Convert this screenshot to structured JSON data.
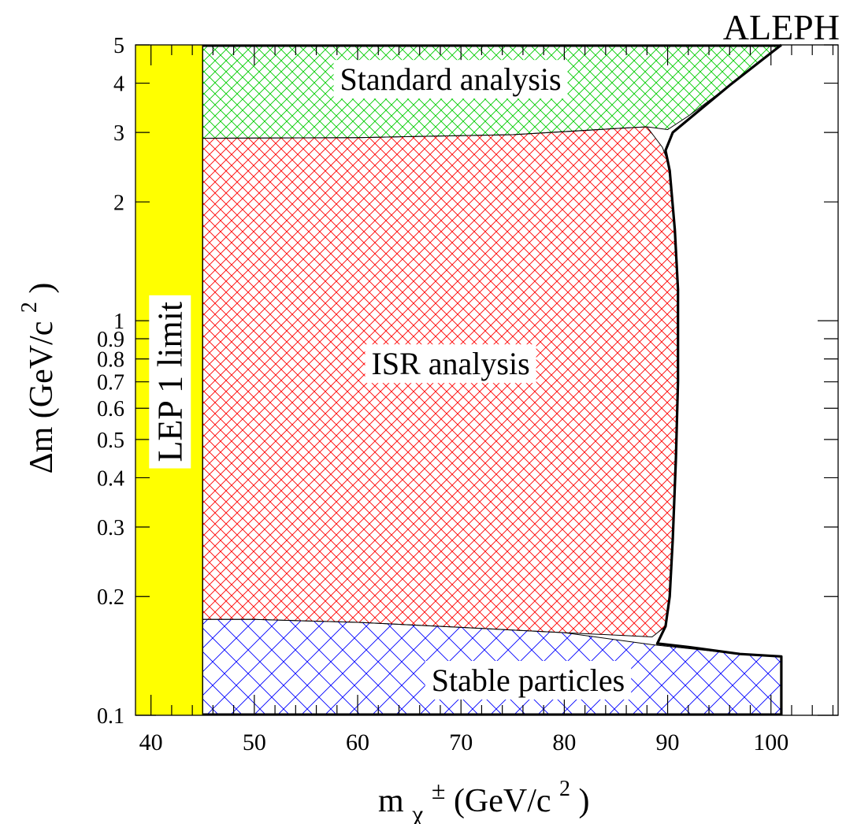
{
  "chart_data": {
    "type": "area",
    "title": "ALEPH",
    "xlabel": {
      "main": "m",
      "sub": "χ",
      "sup": "±",
      "units": " (GeV/c",
      "units_sup": "2",
      "close": ")"
    },
    "ylabel": {
      "main": "Δm (GeV/c",
      "sup": "2",
      "close": ")"
    },
    "xlim": [
      38.5,
      106.5
    ],
    "ylim": [
      0.1,
      5
    ],
    "yscale": "log",
    "x_ticks": [
      40,
      50,
      60,
      70,
      80,
      90,
      100
    ],
    "x_tick_labels": [
      "40",
      "50",
      "60",
      "70",
      "80",
      "90",
      "100"
    ],
    "y_ticks": [
      0.1,
      0.2,
      0.3,
      0.4,
      0.5,
      0.6,
      0.7,
      0.8,
      0.9,
      1,
      2,
      3,
      4,
      5
    ],
    "y_tick_labels": [
      "0.1",
      "0.2",
      "0.3",
      "0.4",
      "0.5",
      "0.6",
      "0.7",
      "0.8",
      "0.9",
      "1",
      "2",
      "3",
      "4",
      "5"
    ],
    "colors": {
      "lep1": "#ffff00",
      "standard": "#00cc00",
      "isr": "#ff0000",
      "stable": "#0000ff"
    },
    "regions": [
      {
        "name": "LEP 1 limit",
        "fill": "solid",
        "color": "#ffff00",
        "points": [
          [
            38.5,
            0.1
          ],
          [
            45,
            0.1
          ],
          [
            45,
            5
          ],
          [
            38.5,
            5
          ]
        ]
      },
      {
        "name": "Standard analysis",
        "fill": "crosshatch",
        "color": "#00cc00",
        "points": [
          [
            45,
            5
          ],
          [
            101,
            5
          ],
          [
            99,
            4.55
          ],
          [
            96,
            3.95
          ],
          [
            92,
            3.3
          ],
          [
            90,
            3.05
          ],
          [
            88,
            3.1
          ],
          [
            86,
            3.08
          ],
          [
            75,
            2.96
          ],
          [
            60,
            2.91
          ],
          [
            45,
            2.9
          ]
        ]
      },
      {
        "name": "ISR analysis",
        "fill": "crosshatch",
        "color": "#ff0000",
        "points": [
          [
            45,
            2.9
          ],
          [
            60,
            2.91
          ],
          [
            75,
            2.96
          ],
          [
            86,
            3.08
          ],
          [
            88,
            3.1
          ],
          [
            89.5,
            2.75
          ],
          [
            90.2,
            2.45
          ],
          [
            90.7,
            1.7
          ],
          [
            91,
            1.2
          ],
          [
            91,
            0.7
          ],
          [
            90.8,
            0.45
          ],
          [
            90.5,
            0.28
          ],
          [
            90.2,
            0.2
          ],
          [
            89.8,
            0.168
          ],
          [
            88.5,
            0.158
          ],
          [
            80,
            0.162
          ],
          [
            70,
            0.167
          ],
          [
            60,
            0.172
          ],
          [
            50,
            0.175
          ],
          [
            45,
            0.175
          ]
        ]
      },
      {
        "name": "Stable particles",
        "fill": "crosshatch",
        "color": "#0000ff",
        "points": [
          [
            45,
            0.1
          ],
          [
            101,
            0.1
          ],
          [
            101,
            0.141
          ],
          [
            97,
            0.143
          ],
          [
            88.5,
            0.151
          ],
          [
            80,
            0.162
          ],
          [
            70,
            0.167
          ],
          [
            60,
            0.172
          ],
          [
            50,
            0.175
          ],
          [
            45,
            0.175
          ]
        ]
      }
    ],
    "outer_boundary": [
      [
        101,
        5
      ],
      [
        99,
        4.55
      ],
      [
        96,
        3.95
      ],
      [
        93,
        3.4
      ],
      [
        90.5,
        3.0
      ],
      [
        89.8,
        2.7
      ],
      [
        90.2,
        2.4
      ],
      [
        90.7,
        1.7
      ],
      [
        91,
        1.2
      ],
      [
        91,
        0.7
      ],
      [
        90.8,
        0.45
      ],
      [
        90.5,
        0.28
      ],
      [
        90.2,
        0.2
      ],
      [
        89.8,
        0.168
      ],
      [
        89,
        0.152
      ],
      [
        92,
        0.149
      ],
      [
        97,
        0.143
      ],
      [
        101,
        0.141
      ],
      [
        101,
        0.1
      ]
    ],
    "labels": [
      {
        "text": "Standard analysis",
        "x": 69,
        "y": 4.1
      },
      {
        "text": "ISR analysis",
        "x": 69,
        "y": 0.78
      },
      {
        "text": "Stable particles",
        "x": 76.5,
        "y": 0.123
      },
      {
        "text": "LEP 1 limit",
        "x": 41.8,
        "y": 0.7,
        "rotated": true
      }
    ],
    "grid": false,
    "legend": "none"
  }
}
